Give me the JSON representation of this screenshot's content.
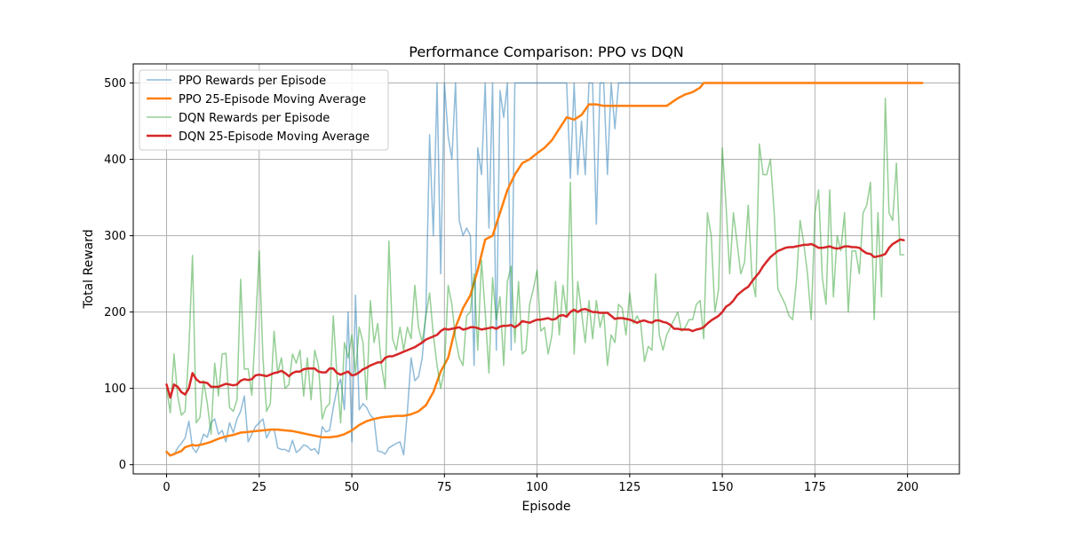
{
  "chart_data": {
    "type": "line",
    "title": "Performance Comparison: PPO vs DQN",
    "xlabel": "Episode",
    "ylabel": "Total Reward",
    "xlim": [
      -9,
      214
    ],
    "ylim": [
      -12,
      525
    ],
    "xticks": [
      0,
      25,
      50,
      75,
      100,
      125,
      150,
      175,
      200
    ],
    "yticks": [
      0,
      100,
      200,
      300,
      400,
      500
    ],
    "grid": true,
    "legend_position": "upper left",
    "series": [
      {
        "name": "PPO Rewards per Episode",
        "color": "#1f77b4",
        "opacity": 0.5,
        "width": 1.5,
        "x": [
          0,
          1,
          2,
          3,
          4,
          5,
          6,
          7,
          8,
          9,
          10,
          11,
          12,
          13,
          14,
          15,
          16,
          17,
          18,
          19,
          20,
          21,
          22,
          23,
          24,
          25,
          26,
          27,
          28,
          29,
          30,
          31,
          32,
          33,
          34,
          35,
          36,
          37,
          38,
          39,
          40,
          41,
          42,
          43,
          44,
          45,
          46,
          47,
          48,
          49,
          50,
          51,
          52,
          53,
          54,
          55,
          56,
          57,
          58,
          59,
          60,
          61,
          62,
          63,
          64,
          65,
          66,
          67,
          68,
          69,
          70,
          71,
          72,
          73,
          74,
          75,
          76,
          77,
          78,
          79,
          80,
          81,
          82,
          83,
          84,
          85,
          86,
          87,
          88,
          89,
          90,
          91,
          92,
          93,
          94,
          95,
          96,
          97,
          100,
          104,
          108,
          109,
          110,
          111,
          112,
          113,
          114,
          115,
          116,
          117,
          118,
          119,
          120,
          121,
          122,
          125,
          130,
          135,
          140,
          145
        ],
        "y": [
          17,
          12,
          13,
          22,
          28,
          35,
          57,
          22,
          16,
          26,
          40,
          36,
          55,
          60,
          40,
          45,
          30,
          55,
          42,
          60,
          70,
          90,
          30,
          40,
          50,
          55,
          60,
          35,
          45,
          47,
          22,
          20,
          20,
          17,
          32,
          16,
          20,
          26,
          24,
          19,
          21,
          14,
          50,
          43,
          45,
          75,
          100,
          112,
          72,
          200,
          30,
          222,
          72,
          80,
          75,
          65,
          60,
          18,
          17,
          14,
          22,
          25,
          28,
          30,
          13,
          70,
          140,
          110,
          115,
          140,
          200,
          432,
          300,
          500,
          250,
          500,
          430,
          400,
          500,
          320,
          300,
          310,
          300,
          130,
          415,
          380,
          500,
          310,
          500,
          150,
          490,
          455,
          500,
          150,
          500,
          500,
          500,
          500,
          500,
          500,
          500,
          375,
          500,
          380,
          450,
          380,
          500,
          500,
          315,
          500,
          500,
          380,
          500,
          440,
          500,
          500,
          500,
          500,
          500,
          500
        ]
      },
      {
        "name": "PPO 25-Episode Moving Average",
        "color": "#ff7f0e",
        "opacity": 1,
        "width": 2.5,
        "x": [
          0,
          1,
          2,
          4,
          5,
          7,
          8,
          10,
          12,
          14,
          16,
          18,
          20,
          22,
          24,
          26,
          28,
          30,
          32,
          34,
          36,
          38,
          40,
          42,
          44,
          46,
          48,
          50,
          52,
          54,
          56,
          58,
          60,
          62,
          64,
          66,
          68,
          70,
          72,
          74,
          76,
          78,
          80,
          82,
          84,
          86,
          88,
          90,
          92,
          94,
          96,
          98,
          100,
          102,
          104,
          106,
          108,
          110,
          112,
          114,
          116,
          118,
          120,
          125,
          130,
          135,
          138,
          140,
          142,
          144,
          145,
          150,
          160,
          170,
          180,
          190,
          200,
          204
        ],
        "y": [
          17,
          12,
          14,
          18,
          23,
          26,
          25,
          27,
          30,
          34,
          37,
          39,
          42,
          43,
          44,
          45,
          46,
          46,
          45,
          44,
          42,
          40,
          38,
          36,
          36,
          37,
          40,
          45,
          52,
          57,
          60,
          62,
          63,
          64,
          64,
          66,
          70,
          78,
          95,
          122,
          140,
          180,
          205,
          222,
          255,
          295,
          300,
          330,
          360,
          380,
          395,
          400,
          408,
          415,
          425,
          440,
          455,
          452,
          458,
          472,
          472,
          470,
          470,
          470,
          470,
          470,
          480,
          485,
          488,
          494,
          500,
          500,
          500,
          500,
          500,
          500,
          500,
          500
        ]
      },
      {
        "name": "DQN Rewards per Episode",
        "color": "#2ca02c",
        "opacity": 0.5,
        "width": 1.5,
        "x": [
          0,
          1,
          2,
          3,
          4,
          5,
          6,
          7,
          8,
          9,
          10,
          11,
          12,
          13,
          14,
          15,
          16,
          17,
          18,
          19,
          20,
          21,
          22,
          23,
          24,
          25,
          26,
          27,
          28,
          29,
          30,
          31,
          32,
          33,
          34,
          35,
          36,
          37,
          38,
          39,
          40,
          41,
          42,
          43,
          44,
          45,
          46,
          47,
          48,
          49,
          50,
          51,
          52,
          53,
          54,
          55,
          56,
          57,
          58,
          59,
          60,
          61,
          62,
          63,
          64,
          65,
          66,
          67,
          68,
          69,
          70,
          71,
          72,
          73,
          74,
          75,
          76,
          77,
          78,
          79,
          80,
          81,
          82,
          83,
          84,
          85,
          86,
          87,
          88,
          89,
          90,
          91,
          92,
          93,
          94,
          95,
          96,
          97,
          98,
          99,
          100,
          101,
          102,
          103,
          104,
          105,
          106,
          107,
          108,
          109,
          110,
          111,
          112,
          113,
          114,
          115,
          116,
          117,
          118,
          119,
          120,
          121,
          122,
          123,
          124,
          125,
          126,
          127,
          128,
          129,
          130,
          131,
          132,
          133,
          134,
          135,
          136,
          137,
          138,
          139,
          140,
          141,
          142,
          143,
          144,
          145,
          146,
          147,
          148,
          149,
          150,
          151,
          152,
          153,
          154,
          155,
          156,
          157,
          158,
          159,
          160,
          161,
          162,
          163,
          164,
          165,
          166,
          167,
          168,
          169,
          170,
          171,
          172,
          173,
          174,
          175,
          176,
          177,
          178,
          179,
          180,
          181,
          182,
          183,
          184,
          185,
          186,
          187,
          188,
          189,
          190,
          191,
          192,
          193,
          194,
          195,
          196,
          197,
          198,
          199
        ],
        "y": [
          100,
          68,
          145,
          90,
          65,
          70,
          150,
          274,
          55,
          62,
          110,
          80,
          40,
          133,
          90,
          145,
          146,
          75,
          70,
          85,
          243,
          125,
          126,
          91,
          180,
          280,
          140,
          70,
          80,
          175,
          120,
          140,
          100,
          105,
          145,
          133,
          150,
          90,
          140,
          85,
          150,
          130,
          60,
          75,
          80,
          195,
          115,
          55,
          160,
          140,
          170,
          120,
          180,
          160,
          85,
          215,
          160,
          185,
          130,
          100,
          293,
          165,
          150,
          180,
          150,
          180,
          165,
          235,
          180,
          160,
          195,
          225,
          170,
          130,
          100,
          125,
          235,
          210,
          165,
          140,
          130,
          195,
          200,
          250,
          150,
          268,
          200,
          120,
          245,
          190,
          220,
          130,
          240,
          260,
          160,
          240,
          145,
          150,
          210,
          230,
          255,
          175,
          180,
          145,
          170,
          240,
          170,
          235,
          195,
          370,
          145,
          240,
          200,
          160,
          215,
          165,
          215,
          180,
          200,
          130,
          170,
          160,
          210,
          205,
          170,
          225,
          185,
          195,
          185,
          135,
          155,
          150,
          250,
          170,
          150,
          170,
          180,
          190,
          200,
          175,
          180,
          190,
          190,
          210,
          215,
          165,
          330,
          300,
          200,
          230,
          415,
          340,
          250,
          330,
          290,
          250,
          265,
          340,
          245,
          220,
          420,
          380,
          380,
          400,
          330,
          230,
          220,
          210,
          195,
          190,
          240,
          320,
          290,
          250,
          190,
          330,
          360,
          245,
          210,
          360,
          220,
          300,
          280,
          330,
          200,
          280,
          280,
          250,
          330,
          340,
          370,
          190,
          330,
          220,
          480,
          330,
          320,
          395,
          275,
          275
        ],
        "y_note": ""
      },
      {
        "name": "DQN 25-Episode Moving Average",
        "color": "#d62728",
        "opacity": 1,
        "width": 2.5,
        "x": [
          0,
          1,
          2,
          3,
          4,
          5,
          6,
          7,
          8,
          9,
          10,
          11,
          12,
          13,
          14,
          15,
          16,
          17,
          18,
          19,
          20,
          21,
          22,
          23,
          24,
          25,
          26,
          27,
          28,
          29,
          30,
          31,
          32,
          33,
          34,
          35,
          36,
          37,
          38,
          39,
          40,
          41,
          42,
          43,
          44,
          45,
          46,
          47,
          48,
          49,
          50,
          51,
          52,
          53,
          54,
          55,
          56,
          57,
          58,
          59,
          60,
          61,
          62,
          63,
          64,
          65,
          66,
          67,
          68,
          69,
          70,
          71,
          72,
          73,
          74,
          75,
          76,
          77,
          78,
          79,
          80,
          81,
          82,
          83,
          84,
          85,
          86,
          87,
          88,
          89,
          90,
          91,
          92,
          93,
          94,
          95,
          96,
          97,
          98,
          99,
          100,
          101,
          102,
          103,
          104,
          105,
          106,
          107,
          108,
          109,
          110,
          111,
          112,
          113,
          114,
          115,
          116,
          117,
          118,
          119,
          120,
          121,
          122,
          123,
          124,
          125,
          126,
          127,
          128,
          129,
          130,
          131,
          132,
          133,
          134,
          135,
          136,
          137,
          138,
          139,
          140,
          141,
          142,
          143,
          144,
          145,
          146,
          147,
          148,
          149,
          150,
          151,
          152,
          153,
          154,
          155,
          156,
          157,
          158,
          159,
          160,
          161,
          162,
          163,
          164,
          165,
          166,
          167,
          168,
          169,
          170,
          171,
          172,
          173,
          174,
          175,
          176,
          177,
          178,
          179,
          180,
          181,
          182,
          183,
          184,
          185,
          186,
          187,
          188,
          189,
          190,
          191,
          192,
          193,
          194,
          195,
          196,
          197,
          198,
          199
        ],
        "y": [
          105,
          88,
          105,
          102,
          95,
          92,
          100,
          120,
          112,
          108,
          108,
          107,
          102,
          102,
          102,
          104,
          106,
          105,
          104,
          105,
          110,
          112,
          111,
          112,
          117,
          118,
          117,
          116,
          118,
          120,
          121,
          123,
          120,
          116,
          120,
          122,
          122,
          125,
          126,
          126,
          126,
          122,
          121,
          121,
          126,
          126,
          120,
          118,
          120,
          122,
          117,
          118,
          121,
          125,
          127,
          130,
          132,
          134,
          134,
          140,
          142,
          142,
          144,
          146,
          148,
          150,
          152,
          154,
          157,
          160,
          164,
          166,
          168,
          170,
          175,
          178,
          177,
          178,
          179,
          180,
          177,
          178,
          180,
          180,
          179,
          177,
          178,
          179,
          180,
          178,
          181,
          182,
          182,
          183,
          180,
          183,
          188,
          187,
          186,
          188,
          190,
          190,
          191,
          192,
          190,
          191,
          195,
          196,
          194,
          200,
          203,
          200,
          203,
          204,
          202,
          200,
          200,
          199,
          199,
          199,
          195,
          191,
          192,
          192,
          191,
          190,
          188,
          186,
          188,
          189,
          187,
          186,
          189,
          189,
          187,
          186,
          183,
          178,
          178,
          177,
          177,
          177,
          175,
          177,
          178,
          180,
          185,
          189,
          192,
          195,
          200,
          207,
          210,
          215,
          222,
          226,
          230,
          233,
          240,
          246,
          252,
          260,
          266,
          272,
          276,
          280,
          282,
          284,
          285,
          285,
          286,
          287,
          288,
          288,
          289,
          287,
          284,
          284,
          285,
          286,
          284,
          283,
          284,
          286,
          286,
          285,
          285,
          284,
          280,
          277,
          276,
          272,
          273,
          274,
          276,
          284,
          289,
          292,
          295,
          294
        ]
      }
    ]
  }
}
